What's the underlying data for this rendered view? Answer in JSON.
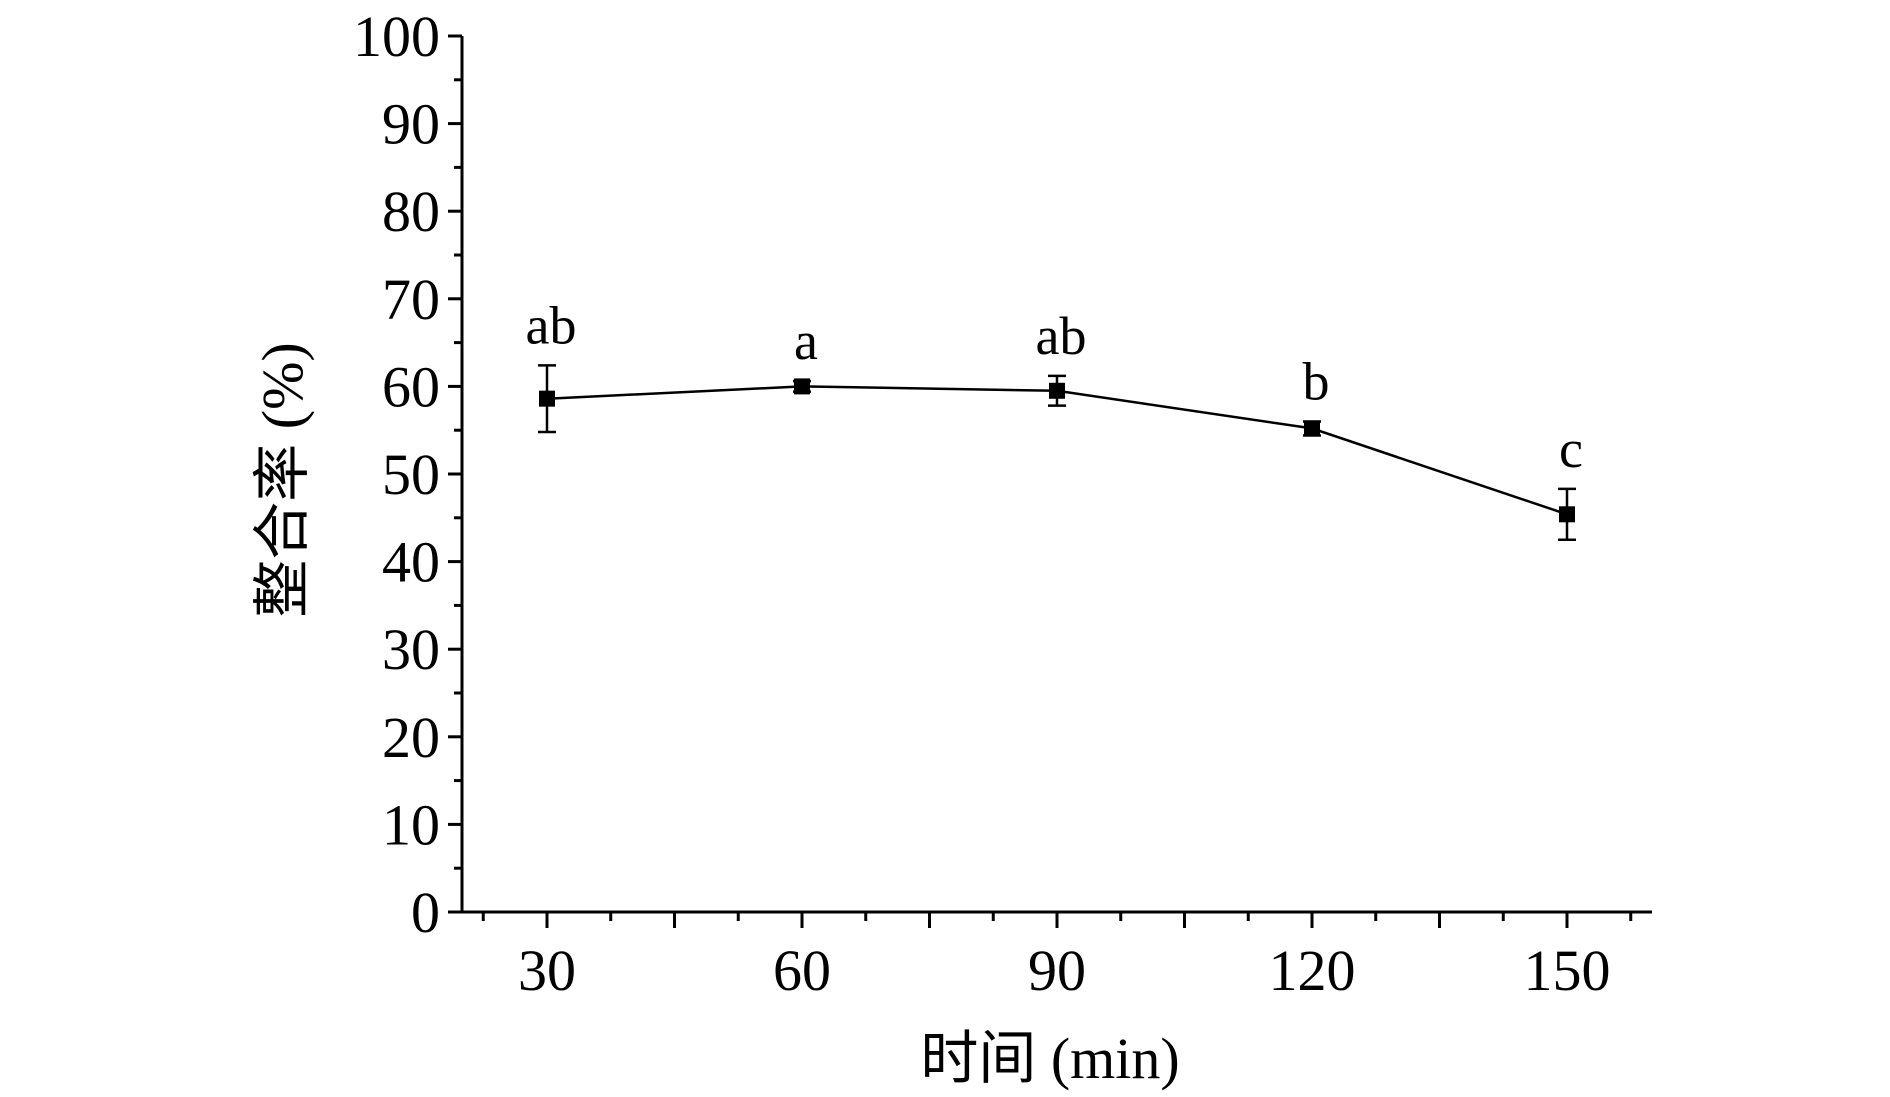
{
  "chart_data": {
    "type": "line",
    "title": "",
    "xlabel": "时间 (min)",
    "ylabel": "整合率 (%)",
    "x": [
      30,
      60,
      90,
      120,
      150
    ],
    "series": [
      {
        "values": [
          58.6,
          60.0,
          59.5,
          55.2,
          45.4
        ],
        "error": [
          3.8,
          0.6,
          1.7,
          0.8,
          2.9
        ],
        "significance": [
          "ab",
          "a",
          "ab",
          "b",
          "c"
        ]
      }
    ],
    "xlim": [
      20,
      160
    ],
    "ylim": [
      0,
      100
    ],
    "xticks": [
      30,
      60,
      90,
      120,
      150
    ],
    "yticks": [
      0,
      10,
      20,
      30,
      40,
      50,
      60,
      70,
      80,
      90,
      100
    ],
    "grid": false,
    "legend": "none",
    "colors": {
      "line": "#000000",
      "marker": "#000000"
    }
  }
}
